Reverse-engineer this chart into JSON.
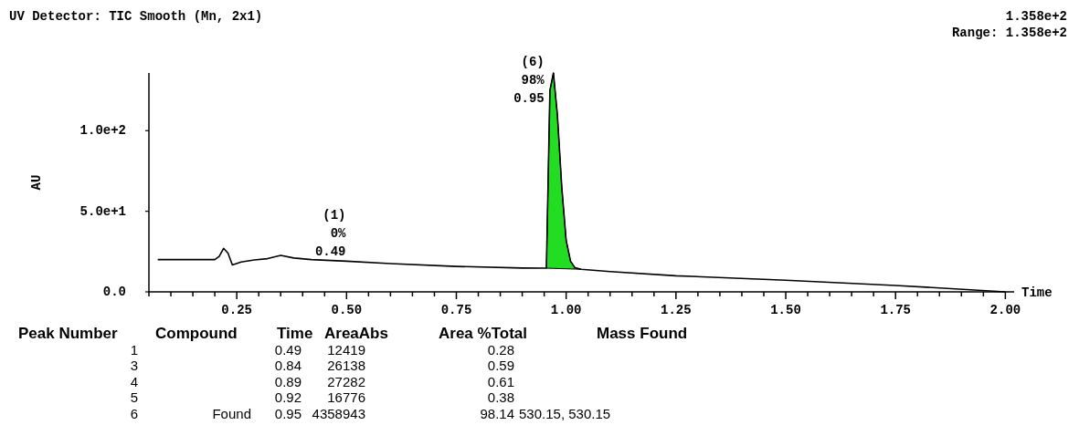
{
  "chart_data": {
    "type": "line",
    "title": "UV Detector: TIC Smooth (Mn, 2x1)",
    "xlabel": "Time",
    "ylabel": "AU",
    "xlim": [
      0.05,
      2.02
    ],
    "ylim": [
      0,
      135.8
    ],
    "xticks": [
      {
        "value": 0.05,
        "label": null
      },
      {
        "value": 0.1,
        "label": null
      },
      {
        "value": 0.15,
        "label": null
      },
      {
        "value": 0.2,
        "label": null
      },
      {
        "value": 0.25,
        "label": "0.25"
      },
      {
        "value": 0.3,
        "label": null
      },
      {
        "value": 0.35,
        "label": null
      },
      {
        "value": 0.4,
        "label": null
      },
      {
        "value": 0.45,
        "label": null
      },
      {
        "value": 0.5,
        "label": "0.50"
      },
      {
        "value": 0.55,
        "label": null
      },
      {
        "value": 0.6,
        "label": null
      },
      {
        "value": 0.65,
        "label": null
      },
      {
        "value": 0.7,
        "label": null
      },
      {
        "value": 0.75,
        "label": "0.75"
      },
      {
        "value": 0.8,
        "label": null
      },
      {
        "value": 0.85,
        "label": null
      },
      {
        "value": 0.9,
        "label": null
      },
      {
        "value": 0.95,
        "label": null
      },
      {
        "value": 1,
        "label": "1.00"
      },
      {
        "value": 1.05,
        "label": null
      },
      {
        "value": 1.1,
        "label": null
      },
      {
        "value": 1.15,
        "label": null
      },
      {
        "value": 1.2,
        "label": null
      },
      {
        "value": 1.25,
        "label": "1.25"
      },
      {
        "value": 1.3,
        "label": null
      },
      {
        "value": 1.35,
        "label": null
      },
      {
        "value": 1.4,
        "label": null
      },
      {
        "value": 1.45,
        "label": null
      },
      {
        "value": 1.5,
        "label": "1.50"
      },
      {
        "value": 1.55,
        "label": null
      },
      {
        "value": 1.6,
        "label": null
      },
      {
        "value": 1.65,
        "label": null
      },
      {
        "value": 1.7,
        "label": null
      },
      {
        "value": 1.75,
        "label": "1.75"
      },
      {
        "value": 1.8,
        "label": null
      },
      {
        "value": 1.85,
        "label": null
      },
      {
        "value": 1.9,
        "label": null
      },
      {
        "value": 1.95,
        "label": null
      },
      {
        "value": 2,
        "label": "2.00"
      }
    ],
    "yticks": [
      {
        "value": 0,
        "label": "0.0"
      },
      {
        "value": 50,
        "label": "5.0e+1"
      },
      {
        "value": 100,
        "label": "1.0e+2"
      }
    ],
    "series": [
      {
        "type": "area",
        "color": "#22dd22",
        "x": [
          0.955,
          0.963,
          0.971,
          0.98,
          0.99,
          1.0,
          1.01,
          1.02,
          1.034
        ],
        "values": [
          14.7,
          125,
          135.8,
          110,
          65,
          32,
          19,
          15,
          14
        ]
      },
      {
        "color": "#000000",
        "x": [
          0.07,
          0.2,
          0.21,
          0.22,
          0.23,
          0.24,
          0.26,
          0.29,
          0.32,
          0.35,
          0.38,
          0.42,
          0.5,
          0.6,
          0.75,
          0.9,
          0.955,
          0.963,
          0.971,
          0.98,
          0.99,
          1.0,
          1.01,
          1.02,
          1.034,
          1.1,
          1.25,
          1.5,
          1.75,
          2.0
        ],
        "values": [
          20,
          20,
          22,
          27,
          24,
          16.7,
          18.5,
          19.8,
          20.6,
          22.6,
          21,
          20,
          19,
          17.5,
          15.8,
          14.8,
          14.7,
          125,
          135.8,
          110,
          65,
          32,
          19,
          15,
          14,
          12.6,
          10,
          7.2,
          4,
          0
        ]
      }
    ],
    "annotations": [
      "1.358e+2",
      "Range: 1.358e+2",
      {
        "text": "(1)\n0%\n0.49",
        "x": 0.49,
        "y": 19
      },
      "(6)\n98%\n0.95",
      "Peak Number\tCompound\tTime\tAreaAbs\tArea %Total\tMass Found",
      "1\t\t0.49\t12419\t0.28",
      "3\t\t0.84\t26138\t0.59",
      "4\t\t0.89\t27282\t0.61",
      "5\t\t0.92\t16776\t0.38",
      "6\tFound\t0.95\t4358943\t98.14\t530.15, 530.15"
    ]
  }
}
